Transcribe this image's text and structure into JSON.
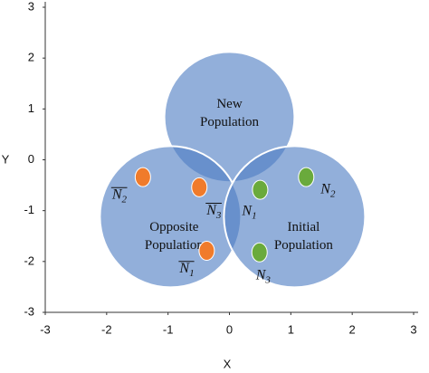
{
  "chart_data": {
    "type": "scatter",
    "x_label": "X",
    "y_label": "Y",
    "xlim": [
      -3,
      3
    ],
    "ylim": [
      -3,
      3
    ],
    "xticks": [
      -3,
      -2,
      -1,
      0,
      1,
      2,
      3
    ],
    "yticks": [
      -3,
      -2,
      -1,
      0,
      1,
      2,
      3
    ],
    "regions": [
      {
        "lines": [
          "New",
          "Population"
        ],
        "x": 0.0,
        "y": 0.84,
        "radius": 1.06,
        "color": "#4f7ec4"
      },
      {
        "lines": [
          "Opposite",
          "Population"
        ],
        "x": -0.96,
        "y": -1.12,
        "radius": 1.15,
        "color": "#4f7ec4"
      },
      {
        "lines": [
          "Initial",
          "Population"
        ],
        "x": 1.06,
        "y": -1.12,
        "radius": 1.15,
        "color": "#4f7ec4"
      }
    ],
    "series": [
      {
        "color": "#f07b2b",
        "x": [
          -1.41,
          -0.49,
          -0.37
        ],
        "values": [
          -0.34,
          -0.54,
          -1.79
        ],
        "labels": [
          {
            "base": "N",
            "sub": "2",
            "overline": true
          },
          {
            "base": "N",
            "sub": "3",
            "overline": true
          },
          {
            "base": "N",
            "sub": "1",
            "overline": true
          }
        ]
      },
      {
        "color": "#6aaa3c",
        "x": [
          0.5,
          1.25,
          0.49
        ],
        "values": [
          -0.59,
          -0.34,
          -1.82
        ],
        "labels": [
          {
            "base": "N",
            "sub": "1",
            "overline": false
          },
          {
            "base": "N",
            "sub": "2",
            "overline": false
          },
          {
            "base": "N",
            "sub": "3",
            "overline": false
          }
        ]
      }
    ]
  }
}
